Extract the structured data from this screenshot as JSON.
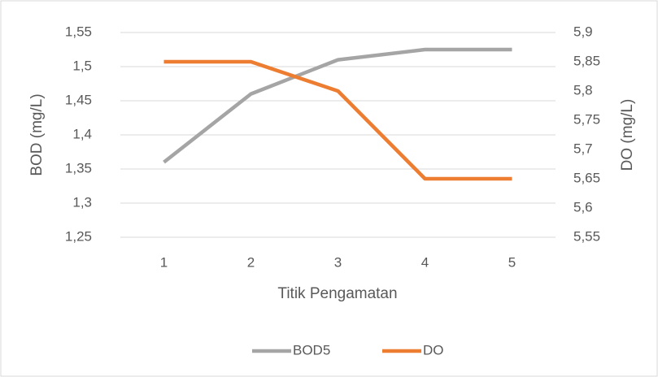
{
  "chart_data": {
    "type": "line",
    "xlabel": "Titik Pengamatan",
    "ylabel": "BOD (mg/L)",
    "y2label": "DO (mg/L)",
    "categories": [
      "1",
      "2",
      "3",
      "4",
      "5"
    ],
    "series": [
      {
        "name": "BOD5",
        "color": "#a5a5a5",
        "values": [
          1.36,
          1.46,
          1.51,
          1.525,
          1.525
        ]
      },
      {
        "name": "DO",
        "color": "#ed7d31",
        "axis": "y2",
        "values": [
          5.85,
          5.85,
          5.8,
          5.65,
          5.65
        ]
      }
    ],
    "ylim": [
      1.25,
      1.55
    ],
    "yticks": [
      {
        "value": 1.25,
        "label": "1,25"
      },
      {
        "value": 1.3,
        "label": "1,3"
      },
      {
        "value": 1.35,
        "label": "1,35"
      },
      {
        "value": 1.4,
        "label": "1,4"
      },
      {
        "value": 1.45,
        "label": "1,45"
      },
      {
        "value": 1.5,
        "label": "1,5"
      },
      {
        "value": 1.55,
        "label": "1,55"
      }
    ],
    "y2lim": [
      5.55,
      5.9
    ],
    "y2ticks": [
      {
        "value": 5.55,
        "label": "5,55"
      },
      {
        "value": 5.6,
        "label": "5,6"
      },
      {
        "value": 5.65,
        "label": "5,65"
      },
      {
        "value": 5.7,
        "label": "5,7"
      },
      {
        "value": 5.75,
        "label": "5,75"
      },
      {
        "value": 5.8,
        "label": "5,8"
      },
      {
        "value": 5.85,
        "label": "5,85"
      },
      {
        "value": 5.9,
        "label": "5,9"
      }
    ],
    "grid": true,
    "legend": "bottom"
  }
}
